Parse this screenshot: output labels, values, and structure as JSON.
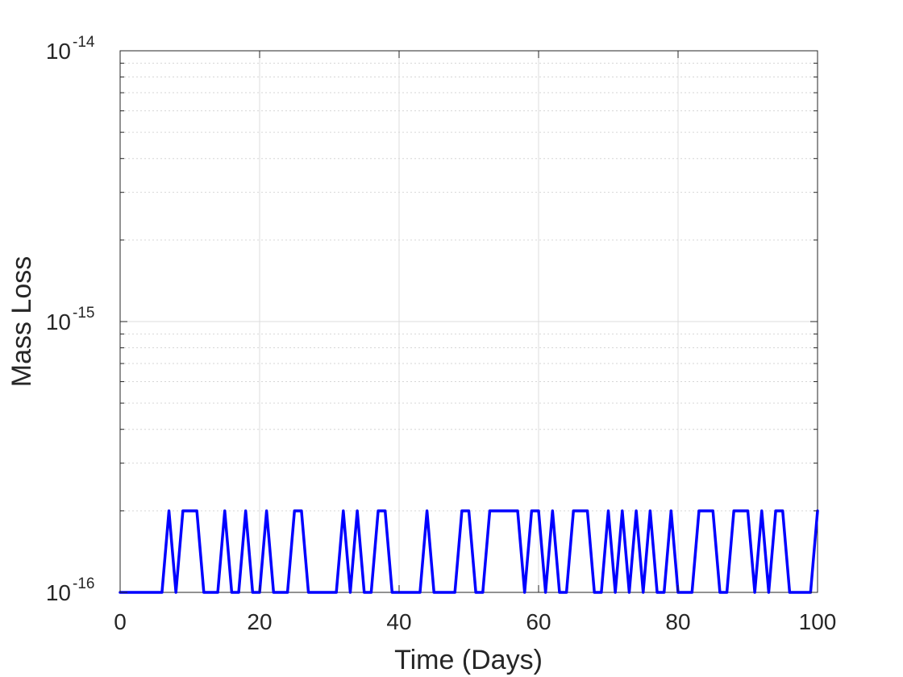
{
  "chart_data": {
    "type": "line",
    "title": "",
    "xlabel": "Time (Days)",
    "ylabel": "Mass Loss",
    "xlim": [
      0,
      100
    ],
    "ylim": [
      1e-16,
      1e-14
    ],
    "yscale": "log",
    "grid": true,
    "x_ticks": [
      {
        "value": 0,
        "label": "0"
      },
      {
        "value": 20,
        "label": "20"
      },
      {
        "value": 40,
        "label": "40"
      },
      {
        "value": 60,
        "label": "60"
      },
      {
        "value": 80,
        "label": "80"
      },
      {
        "value": 100,
        "label": "100"
      }
    ],
    "y_ticks": [
      {
        "value": 1e-16,
        "base": "10",
        "exp": "-16"
      },
      {
        "value": 1e-15,
        "base": "10",
        "exp": "-15"
      },
      {
        "value": 1e-14,
        "base": "10",
        "exp": "-14"
      }
    ],
    "series": [
      {
        "color": "#0000ff",
        "x": [
          0,
          1,
          2,
          3,
          4,
          5,
          6,
          7,
          8,
          9,
          10,
          11,
          12,
          13,
          14,
          15,
          16,
          17,
          18,
          19,
          20,
          21,
          22,
          23,
          24,
          25,
          26,
          27,
          28,
          29,
          30,
          31,
          32,
          33,
          34,
          35,
          36,
          37,
          38,
          39,
          40,
          41,
          42,
          43,
          44,
          45,
          46,
          47,
          48,
          49,
          50,
          51,
          52,
          53,
          54,
          55,
          56,
          57,
          58,
          59,
          60,
          61,
          62,
          63,
          64,
          65,
          66,
          67,
          68,
          69,
          70,
          71,
          72,
          73,
          74,
          75,
          76,
          77,
          78,
          79,
          80,
          81,
          82,
          83,
          84,
          85,
          86,
          87,
          88,
          89,
          90,
          91,
          92,
          93,
          94,
          95,
          96,
          97,
          98,
          99,
          100
        ],
        "y": [
          1e-16,
          1e-16,
          1e-16,
          1e-16,
          1e-16,
          1e-16,
          1e-16,
          2e-16,
          1e-16,
          2e-16,
          2e-16,
          2e-16,
          1e-16,
          1e-16,
          1e-16,
          2e-16,
          1e-16,
          1e-16,
          2e-16,
          1e-16,
          1e-16,
          2e-16,
          1e-16,
          1e-16,
          1e-16,
          2e-16,
          2e-16,
          1e-16,
          1e-16,
          1e-16,
          1e-16,
          1e-16,
          2e-16,
          1e-16,
          2e-16,
          1e-16,
          1e-16,
          2e-16,
          2e-16,
          1e-16,
          1e-16,
          1e-16,
          1e-16,
          1e-16,
          2e-16,
          1e-16,
          1e-16,
          1e-16,
          1e-16,
          2e-16,
          2e-16,
          1e-16,
          1e-16,
          2e-16,
          2e-16,
          2e-16,
          2e-16,
          2e-16,
          1e-16,
          2e-16,
          2e-16,
          1e-16,
          2e-16,
          1e-16,
          1e-16,
          2e-16,
          2e-16,
          2e-16,
          1e-16,
          1e-16,
          2e-16,
          1e-16,
          2e-16,
          1e-16,
          2e-16,
          1e-16,
          2e-16,
          1e-16,
          1e-16,
          2e-16,
          1e-16,
          1e-16,
          1e-16,
          2e-16,
          2e-16,
          2e-16,
          1e-16,
          1e-16,
          2e-16,
          2e-16,
          2e-16,
          1e-16,
          2e-16,
          1e-16,
          2e-16,
          2e-16,
          1e-16,
          1e-16,
          1e-16,
          1e-16,
          2e-16
        ]
      }
    ]
  }
}
